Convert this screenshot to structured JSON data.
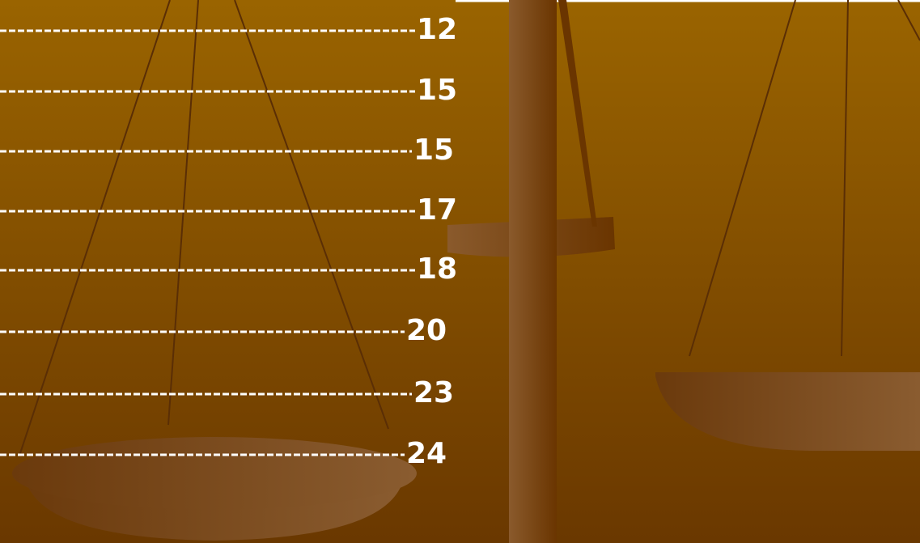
{
  "items": [
    12,
    15,
    15,
    17,
    18,
    20,
    23,
    24
  ]
}
